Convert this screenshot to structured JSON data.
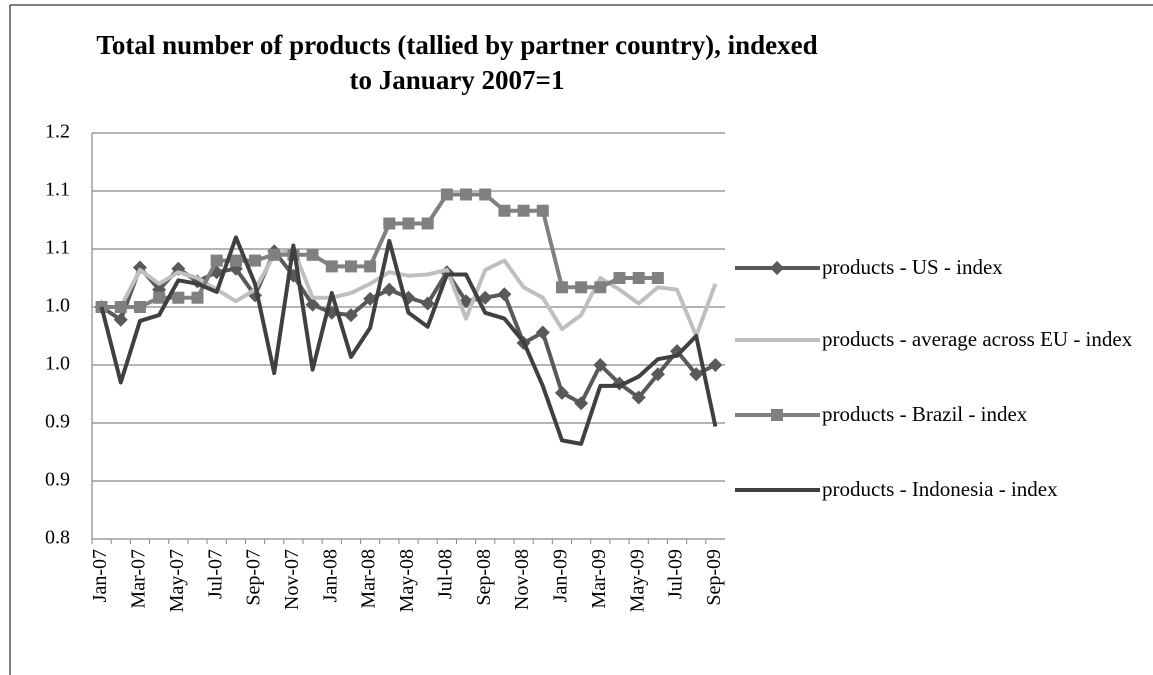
{
  "chart_data": {
    "type": "line",
    "title": "Total number of products (tallied by partner country), indexed to January 2007=1",
    "categories": [
      "Jan-07",
      null,
      "Mar-07",
      null,
      "May-07",
      null,
      "Jul-07",
      null,
      "Sep-07",
      null,
      "Nov-07",
      null,
      "Jan-08",
      null,
      "Mar-08",
      null,
      "May-08",
      null,
      "Jul-08",
      null,
      "Sep-08",
      null,
      "Nov-08",
      null,
      "Jan-09",
      null,
      "Mar-09",
      null,
      "May-09",
      null,
      "Jul-09",
      null,
      "Sep-09"
    ],
    "series": [
      {
        "name": "products - US - index",
        "color": "#595959",
        "marker": "diamond",
        "values": [
          1.0,
          0.989,
          1.034,
          1.015,
          1.033,
          1.022,
          1.03,
          1.033,
          1.01,
          1.048,
          1.027,
          1.002,
          0.995,
          0.993,
          1.007,
          1.015,
          1.008,
          1.003,
          1.03,
          1.005,
          1.008,
          1.011,
          0.969,
          0.978,
          0.926,
          0.917,
          0.95,
          0.934,
          0.922,
          0.942,
          0.962,
          0.942,
          0.95
        ]
      },
      {
        "name": "products - average across EU - index",
        "color": "#bfbfbf",
        "marker": "none",
        "values": [
          1.0,
          1.0,
          1.032,
          1.02,
          1.03,
          1.025,
          1.015,
          1.005,
          1.015,
          1.045,
          1.05,
          1.008,
          1.008,
          1.012,
          1.02,
          1.03,
          1.027,
          1.028,
          1.032,
          0.99,
          1.032,
          1.04,
          1.017,
          1.008,
          0.981,
          0.993,
          1.025,
          1.015,
          1.003,
          1.017,
          1.015,
          0.975,
          1.02
        ]
      },
      {
        "name": "products - Brazil - index",
        "color": "#808080",
        "marker": "square",
        "values": [
          1.0,
          1.0,
          1.0,
          1.008,
          1.008,
          1.008,
          1.04,
          1.04,
          1.04,
          1.045,
          1.045,
          1.045,
          1.035,
          1.035,
          1.035,
          1.072,
          1.072,
          1.072,
          1.097,
          1.097,
          1.097,
          1.083,
          1.083,
          1.083,
          1.017,
          1.017,
          1.017,
          1.025,
          1.025,
          1.025,
          null,
          null,
          null
        ]
      },
      {
        "name": "products - Indonesia - index",
        "color": "#404040",
        "marker": "none",
        "values": [
          1.0,
          0.935,
          0.988,
          0.993,
          1.023,
          1.02,
          1.013,
          1.06,
          1.02,
          0.943,
          1.053,
          0.946,
          1.012,
          0.957,
          0.982,
          1.057,
          0.995,
          0.983,
          1.028,
          1.028,
          0.995,
          0.99,
          0.97,
          0.932,
          0.885,
          0.882,
          0.932,
          0.932,
          0.94,
          0.955,
          0.958,
          0.975,
          0.897
        ]
      }
    ],
    "ylim": [
      0.8,
      1.15
    ],
    "yticks": [
      0.8,
      {
        "value": 0.85,
        "label": "0.9"
      },
      0.9,
      {
        "value": 0.95,
        "label": "1.0"
      },
      {
        "value": 1.0,
        "label": "1.0"
      },
      {
        "value": 1.05,
        "label": "1.1"
      },
      1.1,
      {
        "value": 1.15,
        "label": "1.2"
      }
    ],
    "grid": true
  }
}
